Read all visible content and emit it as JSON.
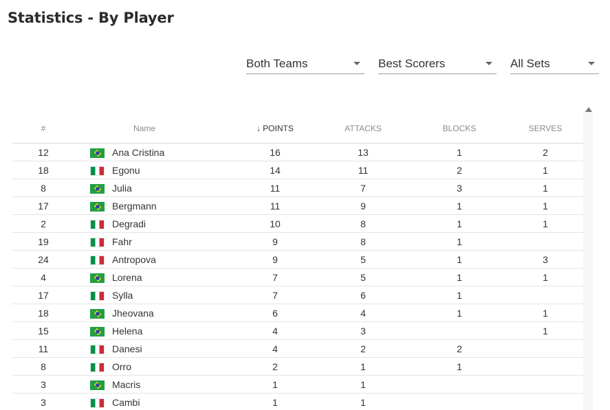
{
  "page": {
    "title": "Statistics - By Player"
  },
  "filters": {
    "team": "Both Teams",
    "category": "Best Scorers",
    "sets": "All Sets"
  },
  "table": {
    "headers": {
      "number": "#",
      "name": "Name",
      "points": "POINTS",
      "attacks": "ATTACKS",
      "blocks": "BLOCKS",
      "serves": "SERVES"
    },
    "sort_arrow_icon": "arrow-down-icon",
    "rows": [
      {
        "number": "12",
        "flag": "br",
        "name": "Ana Cristina",
        "points": "16",
        "attacks": "13",
        "blocks": "1",
        "serves": "2"
      },
      {
        "number": "18",
        "flag": "it",
        "name": "Egonu",
        "points": "14",
        "attacks": "11",
        "blocks": "2",
        "serves": "1"
      },
      {
        "number": "8",
        "flag": "br",
        "name": "Julia",
        "points": "11",
        "attacks": "7",
        "blocks": "3",
        "serves": "1"
      },
      {
        "number": "17",
        "flag": "br",
        "name": "Bergmann",
        "points": "11",
        "attacks": "9",
        "blocks": "1",
        "serves": "1"
      },
      {
        "number": "2",
        "flag": "it",
        "name": "Degradi",
        "points": "10",
        "attacks": "8",
        "blocks": "1",
        "serves": "1"
      },
      {
        "number": "19",
        "flag": "it",
        "name": "Fahr",
        "points": "9",
        "attacks": "8",
        "blocks": "1",
        "serves": ""
      },
      {
        "number": "24",
        "flag": "it",
        "name": "Antropova",
        "points": "9",
        "attacks": "5",
        "blocks": "1",
        "serves": "3"
      },
      {
        "number": "4",
        "flag": "br",
        "name": "Lorena",
        "points": "7",
        "attacks": "5",
        "blocks": "1",
        "serves": "1"
      },
      {
        "number": "17",
        "flag": "it",
        "name": "Sylla",
        "points": "7",
        "attacks": "6",
        "blocks": "1",
        "serves": ""
      },
      {
        "number": "18",
        "flag": "br",
        "name": "Jheovana",
        "points": "6",
        "attacks": "4",
        "blocks": "1",
        "serves": "1"
      },
      {
        "number": "15",
        "flag": "br",
        "name": "Helena",
        "points": "4",
        "attacks": "3",
        "blocks": "",
        "serves": "1"
      },
      {
        "number": "11",
        "flag": "it",
        "name": "Danesi",
        "points": "4",
        "attacks": "2",
        "blocks": "2",
        "serves": ""
      },
      {
        "number": "8",
        "flag": "it",
        "name": "Orro",
        "points": "2",
        "attacks": "1",
        "blocks": "1",
        "serves": ""
      },
      {
        "number": "3",
        "flag": "br",
        "name": "Macris",
        "points": "1",
        "attacks": "1",
        "blocks": "",
        "serves": ""
      },
      {
        "number": "3",
        "flag": "it",
        "name": "Cambi",
        "points": "1",
        "attacks": "1",
        "blocks": "",
        "serves": ""
      }
    ]
  }
}
